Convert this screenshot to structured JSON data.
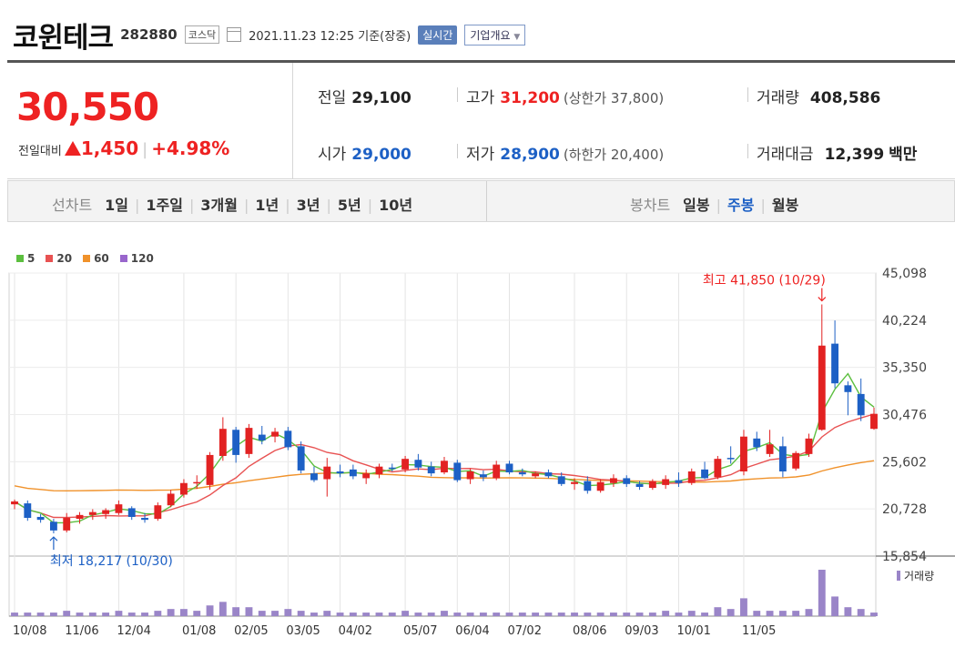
{
  "header": {
    "name": "코윈테크",
    "code": "282880",
    "market": "코스닥",
    "as_of": "2021.11.23 12:25 기준(장중)",
    "realtime_label": "실시간",
    "company_label": "기업개요"
  },
  "quote": {
    "price": "30,550",
    "change_label": "전일대비",
    "change": "1,450",
    "change_pct": "+4.98%",
    "prev_close_label": "전일",
    "prev_close": "29,100",
    "high_label": "고가",
    "high": "31,200",
    "upper_limit": "(상한가 37,800)",
    "volume_label": "거래량",
    "volume": "408,586",
    "open_label": "시가",
    "open": "29,000",
    "low_label": "저가",
    "low": "28,900",
    "lower_limit": "(하한가 20,400)",
    "amount_label": "거래대금",
    "amount": "12,399",
    "amount_unit": "백만"
  },
  "periods": {
    "line_label": "선차트",
    "line_items": [
      "1일",
      "1주일",
      "3개월",
      "1년",
      "3년",
      "5년",
      "10년"
    ],
    "candle_label": "봉차트",
    "candle_items": [
      "일봉",
      "주봉",
      "월봉"
    ],
    "candle_selected": 1
  },
  "colors": {
    "up": "#e22222",
    "down": "#1d60c5",
    "ma5": "#5cbf3f",
    "ma20": "#e85252",
    "ma60": "#f0922b",
    "ma120": "#9966cc",
    "volume": "#9a85c8"
  },
  "chart_data": {
    "type": "candlestick",
    "legend": [
      {
        "name": "5",
        "color": "#5cbf3f"
      },
      {
        "name": "20",
        "color": "#e85252"
      },
      {
        "name": "60",
        "color": "#f0922b"
      },
      {
        "name": "120",
        "color": "#9966cc"
      }
    ],
    "ylim": [
      15854,
      45098
    ],
    "y_ticks": [
      "45,098",
      "40,224",
      "35,350",
      "30,476",
      "25,602",
      "20,728",
      "15,854"
    ],
    "x_ticks": [
      "10/08",
      "11/06",
      "12/04",
      "01/08",
      "02/05",
      "03/05",
      "04/02",
      "05/07",
      "06/04",
      "07/02",
      "08/06",
      "09/03",
      "10/01",
      "11/05"
    ],
    "annotations": {
      "high": "최고 41,850 (10/29)",
      "low": "최저 18,217 (10/30)"
    },
    "volume_label": "거래량",
    "candles": [
      {
        "o": 21200,
        "h": 21700,
        "l": 20700,
        "c": 21500,
        "v": 2
      },
      {
        "o": 21300,
        "h": 21600,
        "l": 19500,
        "c": 19800,
        "v": 2
      },
      {
        "o": 19900,
        "h": 20200,
        "l": 19300,
        "c": 19600,
        "v": 2
      },
      {
        "o": 19400,
        "h": 19700,
        "l": 18200,
        "c": 18500,
        "v": 2
      },
      {
        "o": 18500,
        "h": 20300,
        "l": 18300,
        "c": 19800,
        "v": 3
      },
      {
        "o": 19700,
        "h": 20400,
        "l": 19200,
        "c": 20100,
        "v": 2
      },
      {
        "o": 20100,
        "h": 20700,
        "l": 19600,
        "c": 20400,
        "v": 2
      },
      {
        "o": 20200,
        "h": 20800,
        "l": 19700,
        "c": 20600,
        "v": 2
      },
      {
        "o": 20300,
        "h": 21600,
        "l": 20100,
        "c": 21200,
        "v": 3
      },
      {
        "o": 20800,
        "h": 21000,
        "l": 19600,
        "c": 19900,
        "v": 2
      },
      {
        "o": 19800,
        "h": 20300,
        "l": 19300,
        "c": 19600,
        "v": 2
      },
      {
        "o": 19700,
        "h": 21400,
        "l": 19500,
        "c": 21100,
        "v": 3
      },
      {
        "o": 21100,
        "h": 22700,
        "l": 20900,
        "c": 22300,
        "v": 4
      },
      {
        "o": 22200,
        "h": 23800,
        "l": 21900,
        "c": 23400,
        "v": 4
      },
      {
        "o": 23400,
        "h": 24200,
        "l": 22800,
        "c": 23500,
        "v": 3
      },
      {
        "o": 23200,
        "h": 26600,
        "l": 22700,
        "c": 26300,
        "v": 6
      },
      {
        "o": 26200,
        "h": 30200,
        "l": 25700,
        "c": 29000,
        "v": 8
      },
      {
        "o": 28900,
        "h": 29200,
        "l": 25500,
        "c": 26300,
        "v": 5
      },
      {
        "o": 26400,
        "h": 29500,
        "l": 26000,
        "c": 29100,
        "v": 5
      },
      {
        "o": 28400,
        "h": 29300,
        "l": 27400,
        "c": 27800,
        "v": 3
      },
      {
        "o": 28200,
        "h": 29100,
        "l": 27600,
        "c": 28700,
        "v": 3
      },
      {
        "o": 28800,
        "h": 29200,
        "l": 26800,
        "c": 27100,
        "v": 4
      },
      {
        "o": 27200,
        "h": 27700,
        "l": 24400,
        "c": 24700,
        "v": 3
      },
      {
        "o": 24400,
        "h": 25100,
        "l": 23500,
        "c": 23700,
        "v": 2
      },
      {
        "o": 23800,
        "h": 26000,
        "l": 22000,
        "c": 25100,
        "v": 3
      },
      {
        "o": 24600,
        "h": 25300,
        "l": 24000,
        "c": 24400,
        "v": 2
      },
      {
        "o": 24800,
        "h": 25300,
        "l": 23800,
        "c": 24100,
        "v": 2
      },
      {
        "o": 23900,
        "h": 24800,
        "l": 23300,
        "c": 24400,
        "v": 2
      },
      {
        "o": 24300,
        "h": 25400,
        "l": 23900,
        "c": 25100,
        "v": 2
      },
      {
        "o": 25000,
        "h": 25400,
        "l": 24600,
        "c": 24900,
        "v": 2
      },
      {
        "o": 24800,
        "h": 26200,
        "l": 24500,
        "c": 25900,
        "v": 3
      },
      {
        "o": 25800,
        "h": 26400,
        "l": 24700,
        "c": 25000,
        "v": 2
      },
      {
        "o": 25100,
        "h": 25600,
        "l": 24100,
        "c": 24400,
        "v": 2
      },
      {
        "o": 24500,
        "h": 26100,
        "l": 24300,
        "c": 25700,
        "v": 3
      },
      {
        "o": 25500,
        "h": 25800,
        "l": 23500,
        "c": 23700,
        "v": 2
      },
      {
        "o": 23800,
        "h": 24900,
        "l": 23300,
        "c": 24600,
        "v": 2
      },
      {
        "o": 24300,
        "h": 24700,
        "l": 23600,
        "c": 24000,
        "v": 2
      },
      {
        "o": 23900,
        "h": 25700,
        "l": 23700,
        "c": 25300,
        "v": 2
      },
      {
        "o": 25400,
        "h": 25700,
        "l": 24300,
        "c": 24500,
        "v": 2
      },
      {
        "o": 24500,
        "h": 24900,
        "l": 24100,
        "c": 24300,
        "v": 2
      },
      {
        "o": 24100,
        "h": 24600,
        "l": 23900,
        "c": 24400,
        "v": 2
      },
      {
        "o": 24500,
        "h": 24800,
        "l": 23900,
        "c": 24100,
        "v": 2
      },
      {
        "o": 24100,
        "h": 24500,
        "l": 23100,
        "c": 23300,
        "v": 2
      },
      {
        "o": 23300,
        "h": 23900,
        "l": 22700,
        "c": 23500,
        "v": 2
      },
      {
        "o": 23600,
        "h": 24100,
        "l": 22300,
        "c": 22600,
        "v": 2
      },
      {
        "o": 22600,
        "h": 23800,
        "l": 22400,
        "c": 23500,
        "v": 2
      },
      {
        "o": 23400,
        "h": 24300,
        "l": 23000,
        "c": 23900,
        "v": 2
      },
      {
        "o": 23900,
        "h": 24200,
        "l": 23000,
        "c": 23300,
        "v": 2
      },
      {
        "o": 23300,
        "h": 23600,
        "l": 22700,
        "c": 23000,
        "v": 2
      },
      {
        "o": 22900,
        "h": 23800,
        "l": 22700,
        "c": 23600,
        "v": 2
      },
      {
        "o": 23200,
        "h": 24200,
        "l": 22800,
        "c": 23800,
        "v": 3
      },
      {
        "o": 23700,
        "h": 24500,
        "l": 23000,
        "c": 23400,
        "v": 2
      },
      {
        "o": 23400,
        "h": 24900,
        "l": 23200,
        "c": 24600,
        "v": 3
      },
      {
        "o": 24800,
        "h": 25600,
        "l": 23800,
        "c": 23900,
        "v": 2
      },
      {
        "o": 24000,
        "h": 26200,
        "l": 23800,
        "c": 25900,
        "v": 5
      },
      {
        "o": 26000,
        "h": 27200,
        "l": 25400,
        "c": 25900,
        "v": 4
      },
      {
        "o": 24600,
        "h": 28900,
        "l": 24200,
        "c": 28200,
        "v": 10
      },
      {
        "o": 28000,
        "h": 28700,
        "l": 26700,
        "c": 27100,
        "v": 3
      },
      {
        "o": 26400,
        "h": 28900,
        "l": 26100,
        "c": 27400,
        "v": 3
      },
      {
        "o": 27200,
        "h": 28200,
        "l": 24000,
        "c": 24600,
        "v": 3
      },
      {
        "o": 24900,
        "h": 26700,
        "l": 24700,
        "c": 26500,
        "v": 3
      },
      {
        "o": 26400,
        "h": 28500,
        "l": 26100,
        "c": 28000,
        "v": 4
      },
      {
        "o": 28900,
        "h": 41850,
        "l": 28800,
        "c": 37600,
        "v": 26
      },
      {
        "o": 37800,
        "h": 40200,
        "l": 33200,
        "c": 33700,
        "v": 11
      },
      {
        "o": 33500,
        "h": 33900,
        "l": 30400,
        "c": 32800,
        "v": 5
      },
      {
        "o": 32600,
        "h": 34200,
        "l": 29800,
        "c": 30400,
        "v": 4
      },
      {
        "o": 29000,
        "h": 31200,
        "l": 28900,
        "c": 30550,
        "v": 2
      }
    ]
  }
}
